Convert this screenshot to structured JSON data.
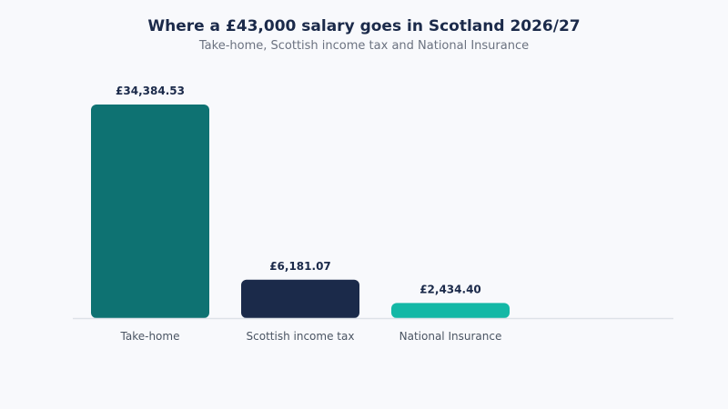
{
  "chart_data": {
    "type": "bar",
    "title": "Where a £43,000 salary goes in Scotland 2026/27",
    "subtitle": "Take-home, Scottish income tax and National Insurance",
    "categories": [
      "Take-home",
      "Scottish income tax",
      "National Insurance"
    ],
    "values": [
      34384.53,
      6181.07,
      2434.4
    ],
    "value_labels": [
      "£34,384.53",
      "£6,181.07",
      "£2,434.40"
    ],
    "colors": [
      "#0e7272",
      "#1b2a4a",
      "#14b8a6"
    ],
    "axis_color": "#dde1e8",
    "xlabel": "",
    "ylabel": "",
    "ylim": [
      0,
      34384.53
    ],
    "grid": false,
    "legend": "none"
  }
}
